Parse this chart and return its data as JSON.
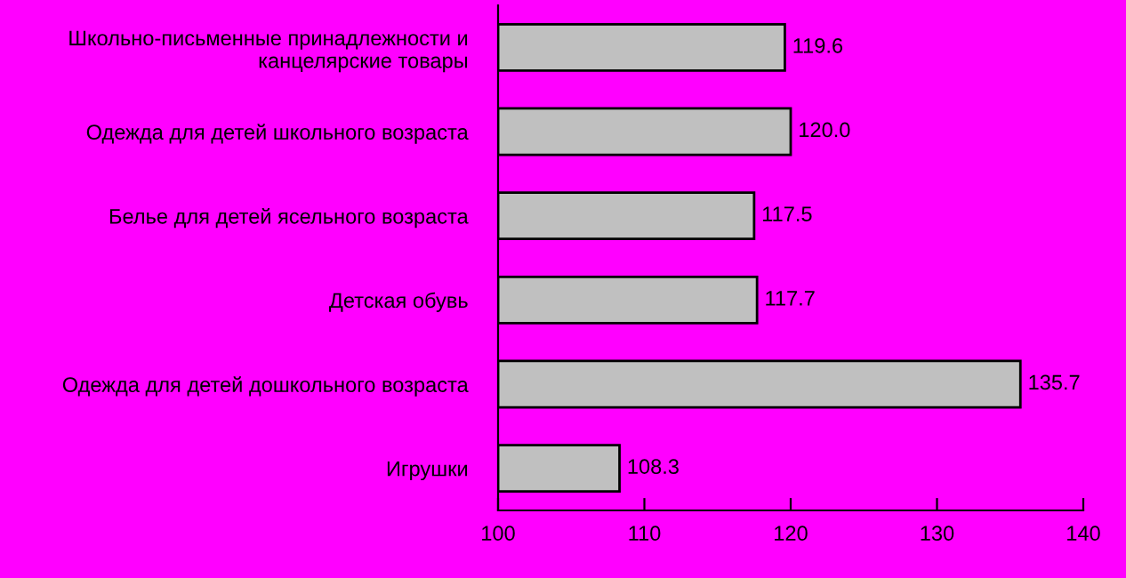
{
  "chart_data": {
    "type": "bar",
    "orientation": "horizontal",
    "categories": [
      "Школьно-письменные принадлежности и\nканцелярские товары",
      "Одежда для детей школьного возраста",
      "Белье для детей ясельного возраста",
      "Детская обувь",
      "Одежда для детей дошкольного возраста",
      "Игрушки"
    ],
    "values": [
      119.6,
      120.0,
      117.5,
      117.7,
      135.7,
      108.3
    ],
    "value_labels": [
      "119.6",
      "120.0",
      "117.5",
      "117.7",
      "135.7",
      "108.3"
    ],
    "color": "#c0c0c0",
    "xlim": [
      100,
      140
    ],
    "xticks": [
      100,
      110,
      120,
      130,
      140
    ],
    "grid": false,
    "legend": false
  }
}
